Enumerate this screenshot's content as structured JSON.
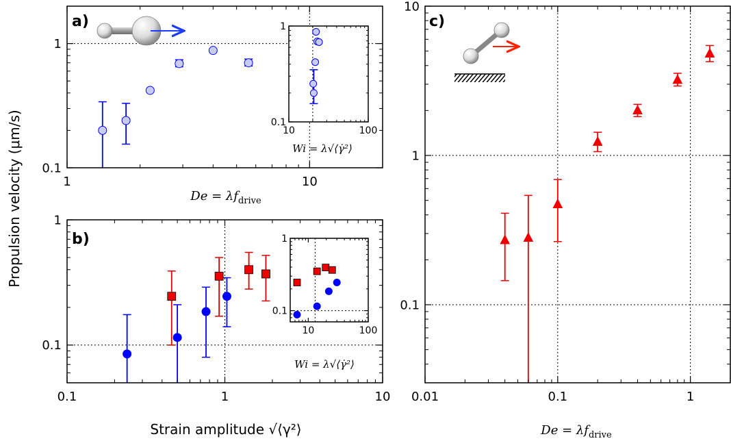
{
  "shared": {
    "ylabel": "Propulsion velocity (μm/s)"
  },
  "chart_data": [
    {
      "panel": "a)",
      "type": "scatter",
      "scale": "log-log",
      "xlabel": "De = λf_drive",
      "xlabel_main": "De",
      "xlabel_eq": " = λf",
      "xlabel_sub": "drive",
      "xlim": [
        1,
        20
      ],
      "ylim": [
        0.1,
        2
      ],
      "xticks": [
        {
          "v": 1,
          "label": "1"
        },
        {
          "v": 10,
          "label": "10"
        }
      ],
      "yticks": [
        {
          "v": 0.1,
          "label": "0.1"
        },
        {
          "v": 1,
          "label": "1"
        }
      ],
      "grid_x": [
        10
      ],
      "grid_y": [
        1
      ],
      "series": [
        {
          "color": "#0000ff",
          "fill": "#c8ccf2",
          "marker": "circle",
          "points": [
            {
              "x": 1.4,
              "y": 0.2,
              "lo": 0.1,
              "hi": 0.34
            },
            {
              "x": 1.75,
              "y": 0.24,
              "lo": 0.155,
              "hi": 0.33
            },
            {
              "x": 2.2,
              "y": 0.42
            },
            {
              "x": 2.9,
              "y": 0.69,
              "lo": 0.65,
              "hi": 0.74
            },
            {
              "x": 4.0,
              "y": 0.88
            },
            {
              "x": 5.6,
              "y": 0.7,
              "lo": 0.66,
              "hi": 0.75
            }
          ]
        }
      ],
      "inset": {
        "xlabel": "Wi = λ√⟨γ̇²⟩",
        "xlim": [
          10,
          100
        ],
        "ylim": [
          0.1,
          1
        ],
        "xticks": [
          {
            "v": 10,
            "label": "10"
          },
          {
            "v": 100,
            "label": "100"
          }
        ],
        "yticks": [
          {
            "v": 0.1,
            "label": "0.1"
          },
          {
            "v": 1,
            "label": "1"
          }
        ],
        "grid_x": [
          20
        ],
        "points": [
          {
            "x": 20.6,
            "y": 0.2,
            "lo": 0.155,
            "hi": 0.35
          },
          {
            "x": 20.3,
            "y": 0.25
          },
          {
            "x": 21.5,
            "y": 0.42
          },
          {
            "x": 22.0,
            "y": 0.87
          },
          {
            "x": 22.8,
            "y": 0.69
          },
          {
            "x": 24.0,
            "y": 0.68
          }
        ]
      }
    },
    {
      "panel": "b)",
      "type": "scatter",
      "scale": "log-log",
      "xlabel": "Strain amplitude √⟨γ²⟩",
      "xlim": [
        0.1,
        10
      ],
      "ylim": [
        0.05,
        1
      ],
      "xticks": [
        {
          "v": 0.1,
          "label": "0.1"
        },
        {
          "v": 1,
          "label": "1"
        },
        {
          "v": 10,
          "label": "10"
        }
      ],
      "yticks": [
        {
          "v": 0.1,
          "label": "0.1"
        },
        {
          "v": 1,
          "label": "1"
        }
      ],
      "grid_x": [
        1
      ],
      "grid_y": [
        0.1
      ],
      "series": [
        {
          "color": "#0000ff",
          "fill": "#0000ff",
          "marker": "circle",
          "points": [
            {
              "x": 0.24,
              "y": 0.085,
              "lo": 0.05,
              "hi": 0.175
            },
            {
              "x": 0.5,
              "y": 0.115,
              "lo": 0.05,
              "hi": 0.21
            },
            {
              "x": 0.76,
              "y": 0.185,
              "lo": 0.08,
              "hi": 0.29
            },
            {
              "x": 1.03,
              "y": 0.245,
              "lo": 0.14,
              "hi": 0.345
            }
          ]
        },
        {
          "color": "#dd0000",
          "fill": "#ee0000",
          "marker": "square",
          "points": [
            {
              "x": 0.46,
              "y": 0.245,
              "lo": 0.1,
              "hi": 0.39
            },
            {
              "x": 0.92,
              "y": 0.355,
              "lo": 0.17,
              "hi": 0.5
            },
            {
              "x": 1.42,
              "y": 0.4,
              "lo": 0.28,
              "hi": 0.55
            },
            {
              "x": 1.82,
              "y": 0.37,
              "lo": 0.225,
              "hi": 0.52
            }
          ]
        }
      ],
      "inset": {
        "xlabel": "Wi = λ√⟨γ̇²⟩",
        "xlim": [
          5,
          100
        ],
        "ylim": [
          0.07,
          1
        ],
        "xticks": [
          {
            "v": 10,
            "label": "10"
          },
          {
            "v": 100,
            "label": "100"
          }
        ],
        "yticks": [
          {
            "v": 0.1,
            "label": "0.1"
          },
          {
            "v": 1,
            "label": "1"
          }
        ],
        "grid_x": [
          13
        ],
        "grid_y": [
          0.1
        ],
        "series": [
          {
            "color": "#0000ff",
            "fill": "#0000ff",
            "marker": "circle",
            "points": [
              {
                "x": 6.5,
                "y": 0.088
              },
              {
                "x": 14,
                "y": 0.115
              },
              {
                "x": 22,
                "y": 0.185
              },
              {
                "x": 30,
                "y": 0.245
              }
            ]
          },
          {
            "color": "#dd0000",
            "fill": "#ee0000",
            "marker": "square",
            "points": [
              {
                "x": 6.5,
                "y": 0.245
              },
              {
                "x": 14,
                "y": 0.35
              },
              {
                "x": 19.5,
                "y": 0.395
              },
              {
                "x": 25,
                "y": 0.365
              }
            ]
          }
        ]
      }
    },
    {
      "panel": "c)",
      "type": "scatter",
      "scale": "log-log",
      "xlabel": "De = λf_drive",
      "xlabel_main": "De",
      "xlabel_eq": " = λf",
      "xlabel_sub": "drive",
      "xlim": [
        0.01,
        2
      ],
      "ylim": [
        0.03,
        10
      ],
      "xticks": [
        {
          "v": 0.01,
          "label": "0.01"
        },
        {
          "v": 0.1,
          "label": "0.1"
        },
        {
          "v": 1,
          "label": "1"
        }
      ],
      "yticks": [
        {
          "v": 0.1,
          "label": "0.1"
        },
        {
          "v": 1,
          "label": "1"
        },
        {
          "v": 10,
          "label": "10"
        }
      ],
      "grid_x": [
        0.1,
        1
      ],
      "grid_y": [
        0.1,
        1
      ],
      "series": [
        {
          "color": "#ee0000",
          "fill": "#ee0000",
          "marker": "triangle",
          "points": [
            {
              "x": 0.04,
              "y": 0.27,
              "lo": 0.145,
              "hi": 0.41
            },
            {
              "x": 0.06,
              "y": 0.28,
              "lo": 0.03,
              "hi": 0.54
            },
            {
              "x": 0.1,
              "y": 0.47,
              "lo": 0.265,
              "hi": 0.69
            },
            {
              "x": 0.2,
              "y": 1.23,
              "lo": 1.06,
              "hi": 1.43
            },
            {
              "x": 0.4,
              "y": 2.0,
              "lo": 1.82,
              "hi": 2.2
            },
            {
              "x": 0.8,
              "y": 3.2,
              "lo": 2.92,
              "hi": 3.55
            },
            {
              "x": 1.4,
              "y": 4.8,
              "lo": 4.25,
              "hi": 5.45
            }
          ]
        }
      ]
    }
  ]
}
